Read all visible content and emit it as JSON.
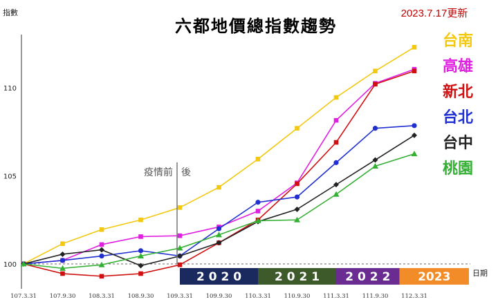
{
  "chart_data": {
    "type": "line",
    "title": "六都地價總指數趨勢",
    "update_note": "2023.7.17更新",
    "ylabel": "指數",
    "xlabel": "日期",
    "ylim": [
      99,
      115
    ],
    "yticks": [
      100,
      105,
      110
    ],
    "categories": [
      "107.3.31",
      "107.9.30",
      "108.3.31",
      "108.9.30",
      "109.3.31",
      "109.9.30",
      "110.3.31",
      "110.9.30",
      "111.3.31",
      "111.9.30",
      "112.3.31"
    ],
    "series": [
      {
        "name": "台南",
        "color": "#f2c811",
        "marker": "square",
        "values": [
          100,
          101.15,
          101.95,
          102.5,
          103.2,
          104.35,
          105.95,
          107.7,
          109.45,
          110.95,
          112.3
        ]
      },
      {
        "name": "高雄",
        "color": "#e020e0",
        "marker": "square",
        "values": [
          100,
          100.2,
          101.1,
          101.55,
          101.6,
          102.1,
          103.0,
          104.6,
          108.15,
          110.25,
          111.05
        ]
      },
      {
        "name": "新北",
        "color": "#d01010",
        "marker": "square",
        "values": [
          100,
          99.45,
          99.3,
          99.45,
          99.95,
          101.2,
          102.5,
          104.55,
          106.9,
          110.2,
          110.95
        ]
      },
      {
        "name": "台北",
        "color": "#1f2fd0",
        "marker": "circle",
        "values": [
          100,
          100.2,
          100.45,
          100.75,
          100.45,
          102.0,
          103.5,
          103.8,
          105.75,
          107.7,
          107.85
        ]
      },
      {
        "name": "台中",
        "color": "#222222",
        "marker": "diamond",
        "values": [
          100,
          100.55,
          100.8,
          99.9,
          100.45,
          101.2,
          102.4,
          103.1,
          104.5,
          105.9,
          107.3
        ]
      },
      {
        "name": "桃園",
        "color": "#33b033",
        "marker": "triangle",
        "values": [
          100,
          99.75,
          99.95,
          100.45,
          100.9,
          101.65,
          102.45,
          102.5,
          103.95,
          105.55,
          106.25
        ]
      }
    ],
    "annotation": {
      "left": "疫情前",
      "right": "後",
      "at_category": "109.3.31"
    },
    "reference_line": 100,
    "year_bands": [
      {
        "label": "2020",
        "spaced": "2 0 2 0",
        "color": "#1b2a5e",
        "from": "109.3.31",
        "to": "110.3.31"
      },
      {
        "label": "2021",
        "spaced": "2 0 2 1",
        "color": "#3c5a2a",
        "from": "110.3.31",
        "to": "111.3.31"
      },
      {
        "label": "2022",
        "spaced": "2 0 2 2",
        "color": "#6a2c91",
        "from": "111.3.31",
        "to": "112.0"
      },
      {
        "label": "2023",
        "spaced": "2023",
        "color": "#f28c28",
        "from": "112.0",
        "to": "end"
      }
    ]
  }
}
